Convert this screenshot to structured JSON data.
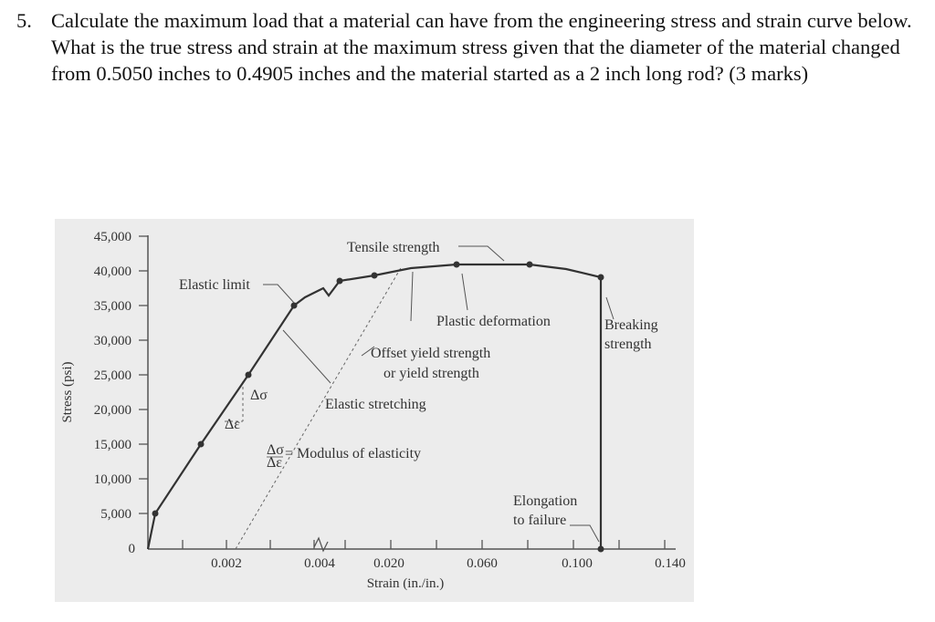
{
  "question": {
    "number": "5.",
    "text": "Calculate the maximum load that a material can have from the engineering stress and strain curve below. What is the true stress and strain at the maximum stress given that the diameter of the material changed from 0.5050 inches to 0.4905 inches and the material started as a 2 inch long rod? (3 marks)"
  },
  "chart_data": {
    "type": "line",
    "xlabel": "Strain (in./in.)",
    "ylabel": "Stress (psi)",
    "y_ticks": [
      "45,000",
      "40,000",
      "35,000",
      "30,000",
      "25,000",
      "20,000",
      "15,000",
      "10,000",
      "5,000",
      "0"
    ],
    "x_ticks": [
      "0.002",
      "0.004",
      "0.020",
      "0.060",
      "0.100",
      "0.140"
    ],
    "x_scale": "broken axis (0–0.004 expanded, 0.004–0.140 compressed)",
    "ylim": [
      0,
      45000
    ],
    "series": [
      {
        "points": [
          {
            "x": 0.0,
            "y": 0
          },
          {
            "x": 0.0005,
            "y": 5000
          },
          {
            "x": 0.001,
            "y": 15000
          },
          {
            "x": 0.0015,
            "y": 25000
          },
          {
            "x": 0.002,
            "y": 35000
          },
          {
            "x": 0.0022,
            "y": 36000
          },
          {
            "x": 0.0032,
            "y": 37000
          },
          {
            "x": 0.004,
            "y": 38000
          },
          {
            "x": 0.01,
            "y": 39500
          },
          {
            "x": 0.04,
            "y": 40000
          },
          {
            "x": 0.06,
            "y": 40000
          },
          {
            "x": 0.08,
            "y": 39500
          },
          {
            "x": 0.11,
            "y": 37500
          },
          {
            "x": 0.112,
            "y": 0
          }
        ]
      }
    ],
    "annotations": {
      "elastic_limit": "Elastic limit",
      "tensile_strength": "Tensile strength",
      "plastic_deformation": "Plastic deformation",
      "breaking_strength_1": "Breaking",
      "breaking_strength_2": "strength",
      "offset_yield_1": "Offset yield strength",
      "offset_yield_2": "or yield strength",
      "delta_sigma": "Δσ",
      "delta_eps": "Δε",
      "elastic_stretching": "Elastic stretching",
      "modulus_num": "Δσ",
      "modulus_den": "Δε",
      "modulus_text": "= Modulus of elasticity",
      "elongation_1": "Elongation",
      "elongation_2": "to failure"
    }
  }
}
